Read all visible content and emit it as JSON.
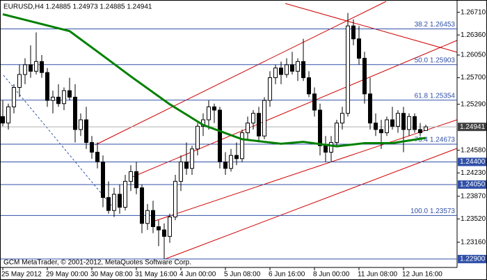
{
  "chart_data": {
    "type": "candlestick",
    "header": "EURUSD,H4  1.24885 1.24973 1.24885 1.24941",
    "footer": "GCM MetaTrader, © 2001-2012, MetaQuotes Software Corp.",
    "categories": [
      "25 May 2012",
      null,
      null,
      null,
      null,
      null,
      null,
      null,
      "29 May 00:00",
      null,
      null,
      null,
      null,
      null,
      null,
      null,
      "30 May 08:00",
      null,
      null,
      null,
      null,
      null,
      null,
      null,
      "31 May 16:00",
      null,
      null,
      null,
      null,
      null,
      null,
      null,
      "4 Jun 00:00",
      null,
      null,
      null,
      null,
      null,
      null,
      null,
      "5 Jun 08:00",
      null,
      null,
      null,
      null,
      null,
      null,
      null,
      "6 Jun 16:00",
      null,
      null,
      null,
      null,
      null,
      null,
      null,
      "8 Jun 00:00",
      null,
      null,
      null,
      null,
      null,
      null,
      null,
      "11 Jun 08:00",
      null,
      null,
      null,
      null,
      null,
      null,
      null,
      "12 Jun 16:00",
      null,
      null,
      null,
      null
    ],
    "open": [
      1.251,
      1.25,
      1.2525,
      1.2555,
      1.2575,
      1.259,
      1.258,
      1.2595,
      1.2578,
      1.2535,
      1.254,
      1.253,
      1.255,
      1.254,
      1.249,
      1.2505,
      1.247,
      1.2455,
      1.244,
      1.2385,
      1.2365,
      1.239,
      1.237,
      1.241,
      1.2425,
      1.24,
      1.2345,
      1.2365,
      1.234,
      1.2335,
      1.2325,
      1.2355,
      1.241,
      1.244,
      1.243,
      1.246,
      1.2495,
      1.2505,
      1.2525,
      1.252,
      1.244,
      1.243,
      1.245,
      1.2445,
      1.2485,
      1.25,
      1.2515,
      1.248,
      1.2535,
      1.257,
      1.2585,
      1.2575,
      1.259,
      1.258,
      1.2595,
      1.257,
      1.2545,
      1.252,
      1.2465,
      1.2455,
      1.247,
      1.25,
      1.2515,
      1.265,
      1.263,
      1.26,
      1.2545,
      1.25,
      1.249,
      1.2485,
      1.2505,
      1.2495,
      1.2515,
      1.249,
      1.251,
      1.249,
      1.24885
    ],
    "high": [
      1.2535,
      1.253,
      1.256,
      1.259,
      1.26,
      1.262,
      1.264,
      1.2605,
      1.2585,
      1.255,
      1.256,
      1.2555,
      1.257,
      1.256,
      1.2515,
      1.2525,
      1.248,
      1.247,
      1.245,
      1.241,
      1.24,
      1.2405,
      1.242,
      1.2435,
      1.244,
      1.2405,
      1.2375,
      1.238,
      1.235,
      1.2345,
      1.236,
      1.242,
      1.245,
      1.247,
      1.2465,
      1.25,
      1.2515,
      1.2535,
      1.253,
      1.2525,
      1.2455,
      1.246,
      1.247,
      1.249,
      1.251,
      1.252,
      1.2525,
      1.254,
      1.258,
      1.259,
      1.2595,
      1.26,
      1.261,
      1.26,
      1.263,
      1.258,
      1.2555,
      1.253,
      1.248,
      1.248,
      1.2505,
      1.2525,
      1.267,
      1.266,
      1.265,
      1.261,
      1.257,
      1.2515,
      1.2505,
      1.251,
      1.2525,
      1.252,
      1.2525,
      1.2515,
      1.2515,
      1.25,
      1.24973
    ],
    "low": [
      1.2495,
      1.249,
      1.2515,
      1.254,
      1.256,
      1.257,
      1.2575,
      1.257,
      1.2525,
      1.2515,
      1.2525,
      1.252,
      1.2535,
      1.247,
      1.248,
      1.246,
      1.2445,
      1.243,
      1.237,
      1.236,
      1.2355,
      1.236,
      1.2365,
      1.2395,
      1.239,
      1.233,
      1.2335,
      1.233,
      1.231,
      1.229,
      1.2315,
      1.235,
      1.2395,
      1.242,
      1.242,
      1.245,
      1.248,
      1.249,
      1.25,
      1.243,
      1.242,
      1.2425,
      1.2435,
      1.244,
      1.2475,
      1.249,
      1.247,
      1.2475,
      1.2525,
      1.256,
      1.256,
      1.257,
      1.2575,
      1.2565,
      1.2565,
      1.254,
      1.251,
      1.245,
      1.244,
      1.244,
      1.2465,
      1.249,
      1.251,
      1.262,
      1.259,
      1.253,
      1.249,
      1.248,
      1.246,
      1.248,
      1.249,
      1.2485,
      1.2455,
      1.248,
      1.2485,
      1.248,
      1.24885
    ],
    "close": [
      1.25,
      1.2525,
      1.2555,
      1.2575,
      1.259,
      1.258,
      1.2595,
      1.2578,
      1.2535,
      1.254,
      1.253,
      1.255,
      1.254,
      1.249,
      1.2505,
      1.247,
      1.2455,
      1.244,
      1.2385,
      1.2365,
      1.239,
      1.237,
      1.241,
      1.2425,
      1.24,
      1.2345,
      1.2365,
      1.234,
      1.2335,
      1.2325,
      1.2355,
      1.241,
      1.244,
      1.243,
      1.246,
      1.2495,
      1.2505,
      1.2525,
      1.252,
      1.244,
      1.243,
      1.245,
      1.2445,
      1.2485,
      1.25,
      1.2515,
      1.248,
      1.2535,
      1.257,
      1.2585,
      1.2575,
      1.259,
      1.258,
      1.2595,
      1.257,
      1.2545,
      1.252,
      1.2465,
      1.2455,
      1.247,
      1.25,
      1.2515,
      1.265,
      1.263,
      1.26,
      1.2545,
      1.25,
      1.249,
      1.2485,
      1.2505,
      1.2495,
      1.2515,
      1.249,
      1.251,
      1.249,
      1.2485,
      1.24941
    ],
    "moving_average": {
      "color": "#008000",
      "x": [
        0,
        12,
        18,
        23,
        30,
        36,
        43,
        50,
        54,
        60,
        65,
        70,
        76
      ],
      "values": [
        1.2668,
        1.2642,
        1.2604,
        1.2572,
        1.2529,
        1.2497,
        1.2475,
        1.2468,
        1.2471,
        1.2464,
        1.2469,
        1.2469,
        1.2477
      ]
    },
    "ylim": [
      1.2277,
      1.269
    ],
    "yticks": [
      {
        "value": 1.2671,
        "label": "1.26710"
      },
      {
        "value": 1.2636,
        "label": "1.26360"
      },
      {
        "value": 1.2605,
        "label": "1.26050"
      },
      {
        "value": 1.257,
        "label": "1.25700"
      },
      {
        "value": 1.2529,
        "label": "1.25290"
      },
      {
        "value": 1.2458,
        "label": "1.24580"
      },
      {
        "value": 1.2423,
        "label": "1.24230"
      },
      {
        "value": 1.2387,
        "label": "1.23870"
      },
      {
        "value": 1.2352,
        "label": "1.23520"
      },
      {
        "value": 1.2316,
        "label": "1.23160"
      }
    ],
    "levels": [
      {
        "value": 1.26453,
        "label": "38.2 1.26453"
      },
      {
        "value": 1.25903,
        "label": "50.0 1.25903"
      },
      {
        "value": 1.25354,
        "label": "61.8 1.25354"
      },
      {
        "value": 1.24673,
        "label": "76.4 1.24673"
      },
      {
        "value": 1.23573,
        "label": "100.0 1.23573"
      }
    ],
    "axis_levels": [
      {
        "value": 1.244,
        "label": "1.24400"
      },
      {
        "value": 1.2405,
        "label": "1.24050"
      },
      {
        "value": 1.229,
        "label": "1.22900"
      }
    ],
    "bid": {
      "value": 1.24941,
      "label": "1.24941"
    },
    "level_color": "#3050a8"
  }
}
